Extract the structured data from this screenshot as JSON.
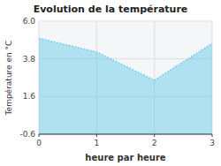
{
  "chart_data": {
    "type": "area",
    "title": "Evolution de la température",
    "xlabel": "heure par heure",
    "ylabel": "Température en °C",
    "x": [
      0,
      1,
      2,
      3
    ],
    "values": [
      5.0,
      4.2,
      2.55,
      4.7
    ],
    "xlim": [
      0,
      3
    ],
    "ylim": [
      -0.6,
      6.0
    ],
    "xticks": [
      0,
      1,
      2,
      3
    ],
    "yticks": [
      -0.6,
      1.6,
      3.8,
      {
        "value": 6.0,
        "label": "6.0"
      }
    ],
    "color": "#5bc8e8",
    "line_style": "dotted",
    "grid": true
  }
}
